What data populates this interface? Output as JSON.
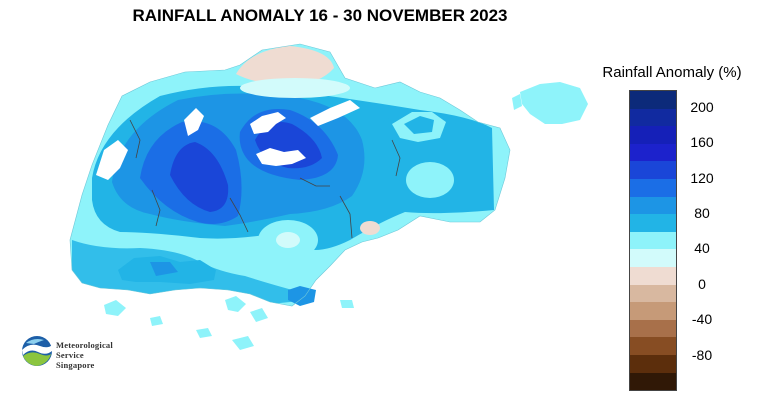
{
  "title": "RAINFALL ANOMALY 16 - 30 NOVEMBER 2023",
  "legend": {
    "title": "Rainfall Anomaly (%)",
    "swatch_colors": [
      "#0c2a7a",
      "#112aa0",
      "#1520b8",
      "#1c22cc",
      "#1a46d8",
      "#1b6ee6",
      "#1d95e5",
      "#22b4e6",
      "#8ef3fa",
      "#d2fbfb",
      "#efdcd2",
      "#d8b8a0",
      "#c69a78",
      "#a8704a",
      "#874d23",
      "#5c2e0c",
      "#301806"
    ],
    "tick_labels": [
      "200",
      "160",
      "120",
      "80",
      "40",
      "0",
      "-40",
      "-80"
    ]
  },
  "logo": {
    "line1": "Meteorological",
    "line2": "Service",
    "line3": "Singapore"
  }
}
